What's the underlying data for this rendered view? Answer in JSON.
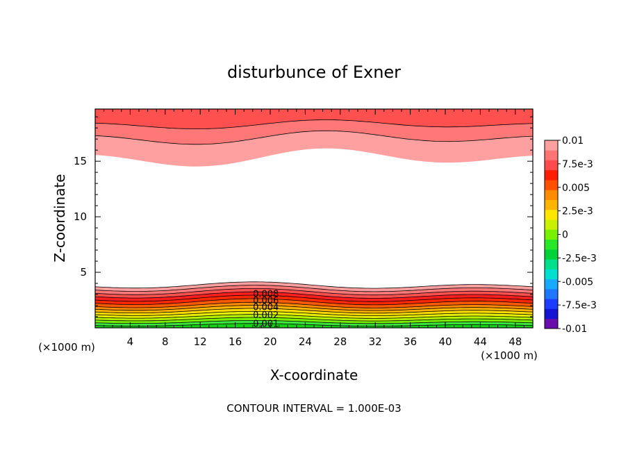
{
  "chart_data": {
    "type": "contour",
    "title": "disturbunce of Exner",
    "xlabel": "X-coordinate",
    "ylabel": "Z-coordinate",
    "x_unit_label": "(×1000 m)",
    "y_unit_label": "(×1000 m)",
    "xlim": [
      0,
      50
    ],
    "ylim": [
      0,
      19.7
    ],
    "x_ticks": [
      4,
      8,
      12,
      16,
      20,
      24,
      28,
      32,
      36,
      40,
      44,
      48
    ],
    "y_ticks": [
      5,
      10,
      15
    ],
    "footer": "CONTOUR INTERVAL = 1.000E-03",
    "colorbar": {
      "labels": [
        "0.01",
        "7.5e-3",
        "0.005",
        "2.5e-3",
        "0",
        "-2.5e-3",
        "-0.005",
        "-7.5e-3",
        "-0.01"
      ],
      "colors_bottom_to_top": [
        "#6a0dad",
        "#1414d2",
        "#1e3cff",
        "#1e78ff",
        "#19aaff",
        "#00e0d0",
        "#00e08c",
        "#00d23c",
        "#28e628",
        "#78f000",
        "#c8f000",
        "#ffe600",
        "#ffb400",
        "#ff8c00",
        "#ff5000",
        "#ff1e00",
        "#ff4b4b",
        "#ff7373",
        "#ffa0a0"
      ]
    },
    "contour_labels": [
      "0.008",
      "0.006",
      "0.004",
      "0.002",
      "0.001"
    ],
    "bottom_band_colors": [
      "#14d214",
      "#3ce63c",
      "#78f000",
      "#b4f000",
      "#e6f000",
      "#ffdc00",
      "#ffb400",
      "#ff8c00",
      "#ff5a00",
      "#ff2800",
      "#ff1e1e",
      "#ff5050",
      "#ff7878",
      "#ffa0a0"
    ],
    "bottom_band_heights_km": [
      0.25,
      0.5,
      0.75,
      1.0,
      1.25,
      1.5,
      1.75,
      2.0,
      2.3,
      2.6,
      2.9,
      3.2,
      3.5,
      3.8
    ],
    "top_band_colors": [
      "#ffa0a0",
      "#ff7878",
      "#ff5050"
    ],
    "top_band_levels_km": [
      15.3,
      17.1,
      18.3
    ]
  }
}
